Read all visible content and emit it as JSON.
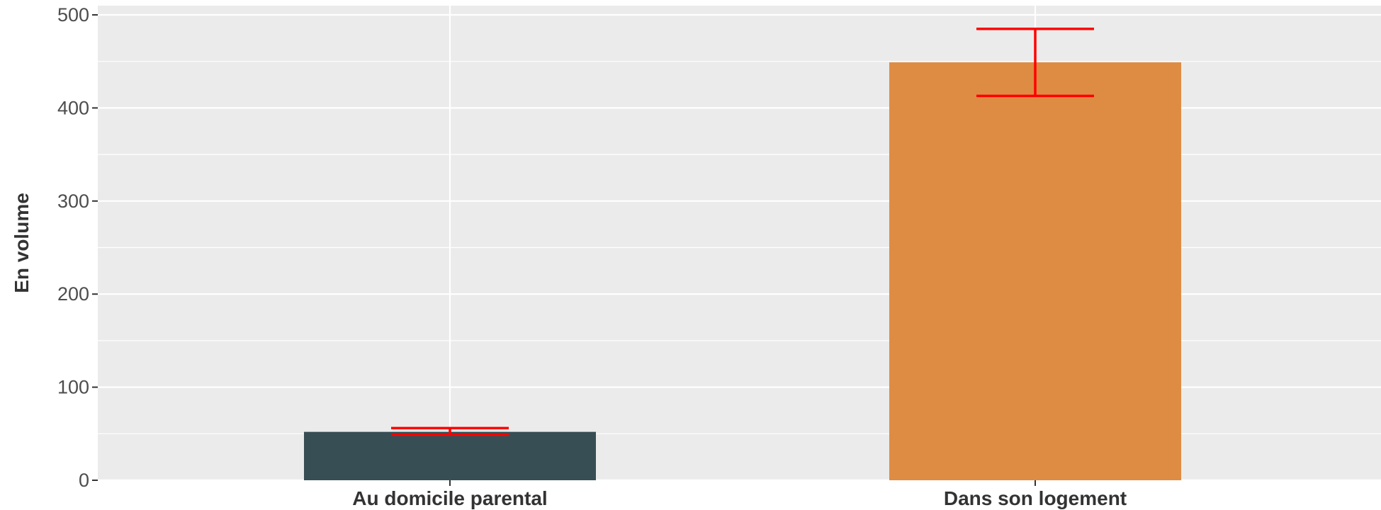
{
  "chart_data": {
    "type": "bar",
    "title": "",
    "xlabel": "",
    "ylabel": "En volume",
    "ylim": [
      0,
      510
    ],
    "yticks": [
      0,
      100,
      200,
      300,
      400,
      500
    ],
    "categories": [
      "Au domicile parental",
      "Dans son logement"
    ],
    "values": [
      52,
      449
    ],
    "error_bars": [
      {
        "low": 49,
        "high": 56
      },
      {
        "low": 413,
        "high": 485
      }
    ],
    "bar_colors": [
      "#384E55",
      "#DE8C43"
    ],
    "error_bar_color": "#FF0000",
    "panel_color": "#EBEBEB",
    "grid": true,
    "legend": "none"
  }
}
